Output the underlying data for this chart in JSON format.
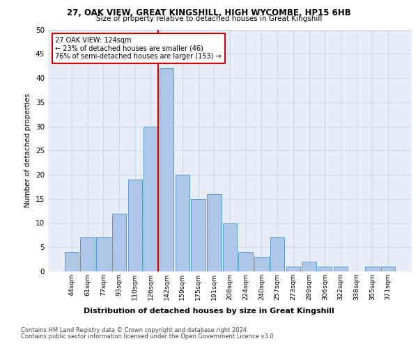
{
  "title1": "27, OAK VIEW, GREAT KINGSHILL, HIGH WYCOMBE, HP15 6HB",
  "title2": "Size of property relative to detached houses in Great Kingshill",
  "xlabel": "Distribution of detached houses by size in Great Kingshill",
  "ylabel": "Number of detached properties",
  "categories": [
    "44sqm",
    "61sqm",
    "77sqm",
    "93sqm",
    "110sqm",
    "126sqm",
    "142sqm",
    "159sqm",
    "175sqm",
    "191sqm",
    "208sqm",
    "224sqm",
    "240sqm",
    "257sqm",
    "273sqm",
    "289sqm",
    "306sqm",
    "322sqm",
    "338sqm",
    "355sqm",
    "371sqm"
  ],
  "values": [
    4,
    7,
    7,
    12,
    19,
    30,
    42,
    20,
    15,
    16,
    10,
    4,
    3,
    7,
    1,
    2,
    1,
    1,
    0,
    1,
    1
  ],
  "bar_color": "#aec6e8",
  "bar_edge_color": "#5b9bd5",
  "highlight_index": 5,
  "highlight_line_color": "#cc0000",
  "annotation_text": "27 OAK VIEW: 124sqm\n← 23% of detached houses are smaller (46)\n76% of semi-detached houses are larger (153) →",
  "annotation_box_color": "#ffffff",
  "annotation_box_edge_color": "#cc0000",
  "footer1": "Contains HM Land Registry data © Crown copyright and database right 2024.",
  "footer2": "Contains public sector information licensed under the Open Government Licence v3.0.",
  "ylim": [
    0,
    50
  ],
  "yticks": [
    0,
    5,
    10,
    15,
    20,
    25,
    30,
    35,
    40,
    45,
    50
  ],
  "grid_color": "#d0d8e8",
  "background_color": "#e8eef8"
}
